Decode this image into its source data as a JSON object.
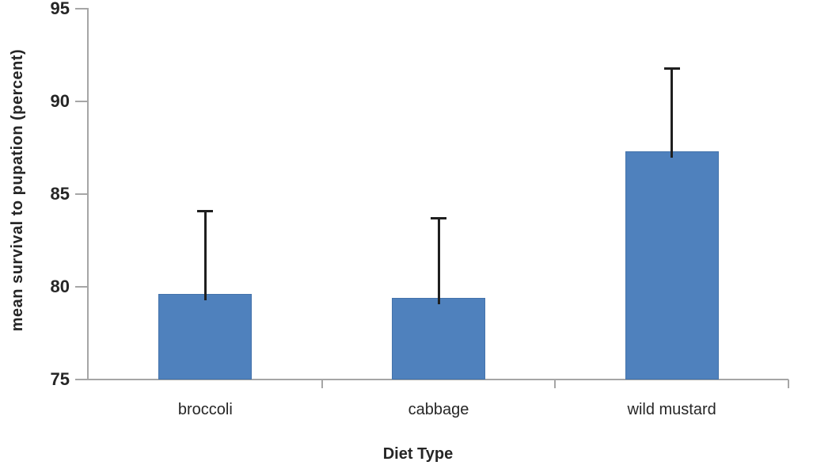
{
  "chart_data": {
    "type": "bar",
    "title": "",
    "xlabel": "Diet Type",
    "ylabel": "mean survival to pupation (percent)",
    "categories": [
      "broccoli",
      "cabbage",
      "wild mustard"
    ],
    "values": [
      79.6,
      79.4,
      87.3
    ],
    "error_upper": [
      4.5,
      4.3,
      4.5
    ],
    "error_bar_tops": [
      84.1,
      83.7,
      91.8
    ],
    "ylim": [
      75,
      95
    ],
    "yticks": [
      75,
      80,
      85,
      90,
      95
    ],
    "grid": false,
    "legend": "none",
    "bar_color": "#4F81BD",
    "error_bar_color": "#1F1F1F",
    "axis_color": "#A6A6A6",
    "text_color": "#262626",
    "background_color": "#FFFFFF"
  }
}
